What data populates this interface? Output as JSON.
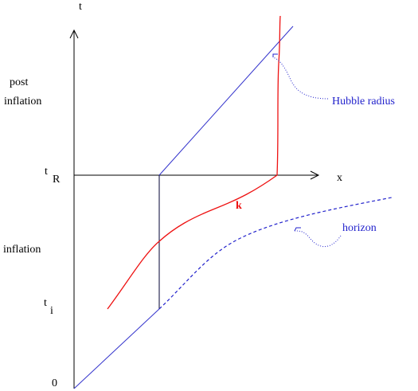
{
  "axes": {
    "vertical": "t",
    "horizontal": "x",
    "origin": "0"
  },
  "ticks": {
    "reheating": {
      "symbol": "t",
      "subscript": "R"
    },
    "initial": {
      "symbol": "t",
      "subscript": "i"
    }
  },
  "regions": {
    "post_inflation": [
      "post",
      "inflation"
    ],
    "inflation": "inflation"
  },
  "curves": {
    "mode": "k",
    "hubble_radius": "Hubble radius",
    "horizon": "horizon"
  }
}
